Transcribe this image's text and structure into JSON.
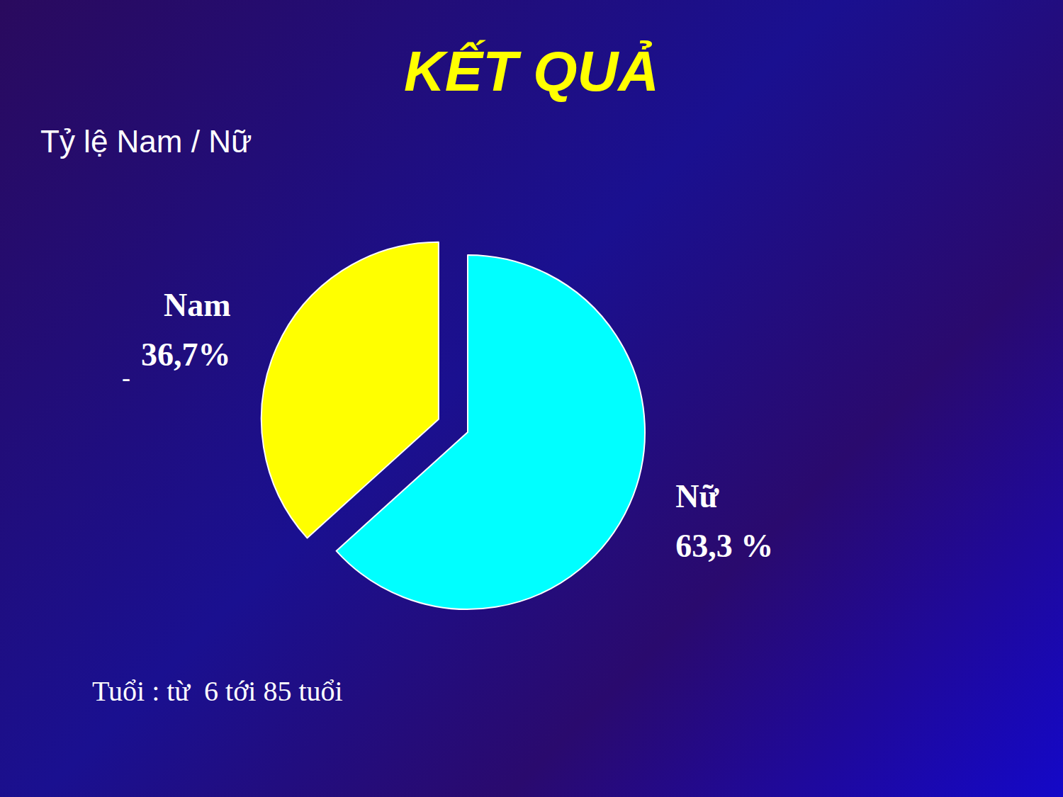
{
  "chart_data": {
    "type": "pie",
    "title": "KẾT QUẢ",
    "subtitle": "Tỷ lệ Nam / Nữ",
    "categories": [
      "Nữ",
      "Nam"
    ],
    "values": [
      63.3,
      36.7
    ],
    "value_labels": [
      "63,3 %",
      "36,7%"
    ],
    "colors": [
      "#00ffff",
      "#ffff00"
    ],
    "data_labels": true,
    "annotations": [
      "Tuổi : từ  6 tới 85 tuổi",
      "-"
    ]
  }
}
